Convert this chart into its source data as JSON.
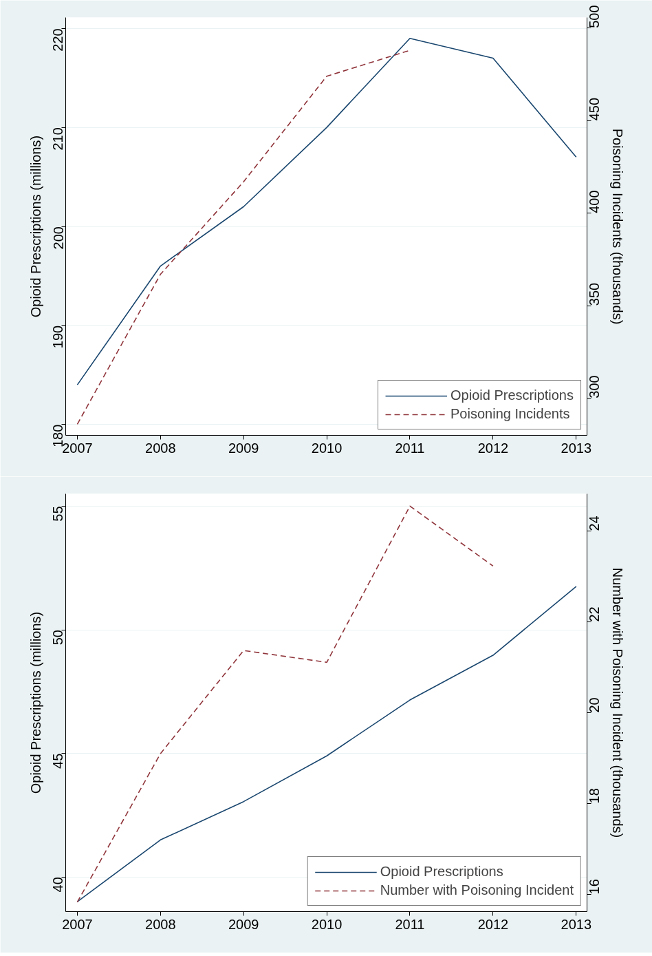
{
  "chart_data": [
    {
      "type": "line",
      "x": [
        2007,
        2008,
        2009,
        2010,
        2011,
        2012,
        2013
      ],
      "xlim": [
        2006.86,
        2013.13
      ],
      "xticks": [
        2007,
        2008,
        2009,
        2010,
        2011,
        2012,
        2013
      ],
      "ylabel": "Opioid Prescriptions (millions)",
      "y2label": "Poisoning Incidents (thousands)",
      "ylim": [
        178.9,
        221.1
      ],
      "yticks": [
        180,
        190,
        200,
        210,
        220
      ],
      "y2lim": [
        280,
        505.7
      ],
      "y2ticks": [
        300,
        350,
        400,
        450,
        500
      ],
      "grid": "y",
      "legend": "bottom right",
      "series": [
        {
          "name": "Opioid Prescriptions",
          "color": "#1a476f",
          "line_style": "solid",
          "values": [
            184,
            196,
            202,
            210,
            219,
            217,
            207
          ]
        },
        {
          "name": "Poisoning Incidents",
          "color": "#90353b",
          "line_style": "dashed",
          "axis": "y2",
          "values": [
            286,
            367,
            417,
            474,
            488,
            null,
            null
          ]
        }
      ]
    },
    {
      "type": "line",
      "x": [
        2007,
        2008,
        2009,
        2010,
        2011,
        2012,
        2013
      ],
      "xlim": [
        2006.86,
        2013.13
      ],
      "xticks": [
        2007,
        2008,
        2009,
        2010,
        2011,
        2012,
        2013
      ],
      "ylabel": "Opioid Prescriptions (millions)",
      "y2label": "Number with Poisoning Incident (thousands)",
      "ylim": [
        38.6,
        55.5
      ],
      "yticks": [
        40,
        45,
        50,
        55
      ],
      "y2lim": [
        15.62,
        24.82
      ],
      "y2ticks": [
        16,
        18,
        20,
        22,
        24
      ],
      "grid": "y",
      "legend": "bottom right",
      "series": [
        {
          "name": "Opioid Prescriptions",
          "color": "#1a476f",
          "line_style": "solid",
          "values": [
            39,
            41.5,
            43.05,
            44.9,
            47.16,
            48.97,
            51.75
          ]
        },
        {
          "name": "Number with Poisoning Incident",
          "color": "#90353b",
          "line_style": "dashed",
          "axis": "y2",
          "values": [
            15.83,
            19.1,
            21.37,
            21.11,
            24.55,
            23.23,
            null
          ]
        }
      ]
    }
  ]
}
